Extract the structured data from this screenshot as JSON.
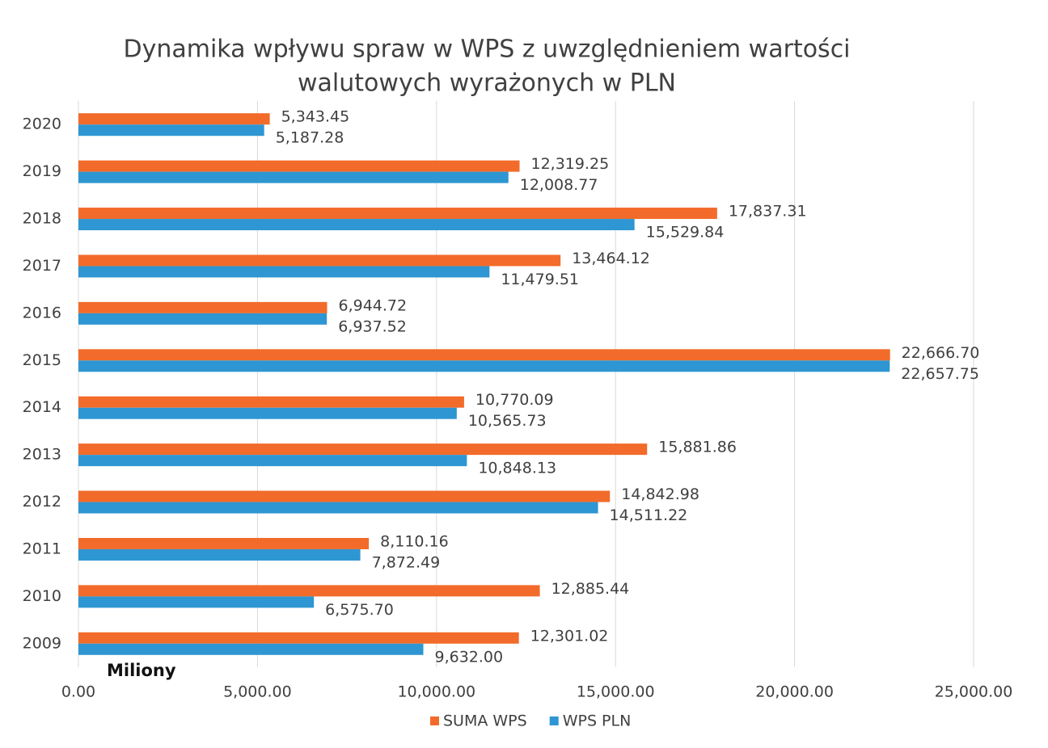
{
  "chart_data": {
    "type": "bar",
    "orientation": "horizontal",
    "title": [
      "Dynamika wpływu spraw w WPS z uwzględnieniem wartości",
      "walutowych wyrażonych w PLN"
    ],
    "annotation": "Miliony",
    "categories": [
      "2020",
      "2019",
      "2018",
      "2017",
      "2016",
      "2015",
      "2014",
      "2013",
      "2012",
      "2011",
      "2010",
      "2009"
    ],
    "series": [
      {
        "name": "SUMA WPS",
        "color": "#f26b2a",
        "values": [
          5343.45,
          12319.25,
          17837.31,
          13464.12,
          6944.72,
          22666.7,
          10770.09,
          15881.86,
          14842.98,
          8110.16,
          12885.44,
          12301.02
        ],
        "value_labels": [
          "5,343.45",
          "12,319.25",
          "17,837.31",
          "13,464.12",
          "6,944.72",
          "22,666.70",
          "10,770.09",
          "15,881.86",
          "14,842.98",
          "8,110.16",
          "12,885.44",
          "12,301.02"
        ]
      },
      {
        "name": "WPS PLN",
        "color": "#2e96d2",
        "values": [
          5187.28,
          12008.77,
          15529.84,
          11479.51,
          6937.52,
          22657.75,
          10565.73,
          10848.13,
          14511.22,
          7872.49,
          6575.7,
          9632.0
        ],
        "value_labels": [
          "5,187.28",
          "12,008.77",
          "15,529.84",
          "11,479.51",
          "6,937.52",
          "22,657.75",
          "10,565.73",
          "10,848.13",
          "14,511.22",
          "7,872.49",
          "6,575.70",
          "9,632.00"
        ]
      }
    ],
    "xlim": [
      0,
      25000
    ],
    "xticks": [
      {
        "value": 0,
        "label": "0.00"
      },
      {
        "value": 5000,
        "label": "5,000.00"
      },
      {
        "value": 10000,
        "label": "10,000.00"
      },
      {
        "value": 15000,
        "label": "15,000.00"
      },
      {
        "value": 20000,
        "label": "20,000.00"
      },
      {
        "value": 25000,
        "label": "25,000.00"
      }
    ],
    "grid": true,
    "legend": "bottom"
  }
}
